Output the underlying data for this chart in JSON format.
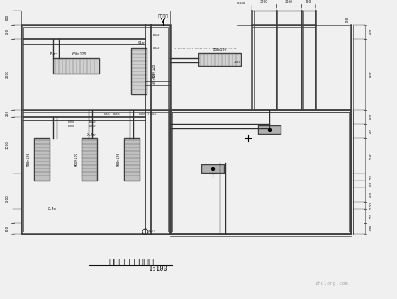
{
  "bg_color": "#f0f0f0",
  "wall_color": "#404040",
  "line_color": "#404040",
  "dim_color": "#404040",
  "title": "会所空调及管道平面",
  "scale": "1:100",
  "fig_width": 5.6,
  "fig_height": 4.22,
  "dpi": 100,
  "left_dims": [
    "200",
    "500",
    "2800",
    "250",
    "1500",
    "3000",
    "200"
  ],
  "right_dims_top": [
    "200",
    "500",
    "1900",
    "700",
    "200"
  ],
  "right_dims_bot": [
    "3550",
    "300",
    "700",
    "200",
    "3550",
    "300",
    "200",
    "1200"
  ],
  "top_dims": [
    "55800",
    "3200",
    "3050",
    "200"
  ]
}
